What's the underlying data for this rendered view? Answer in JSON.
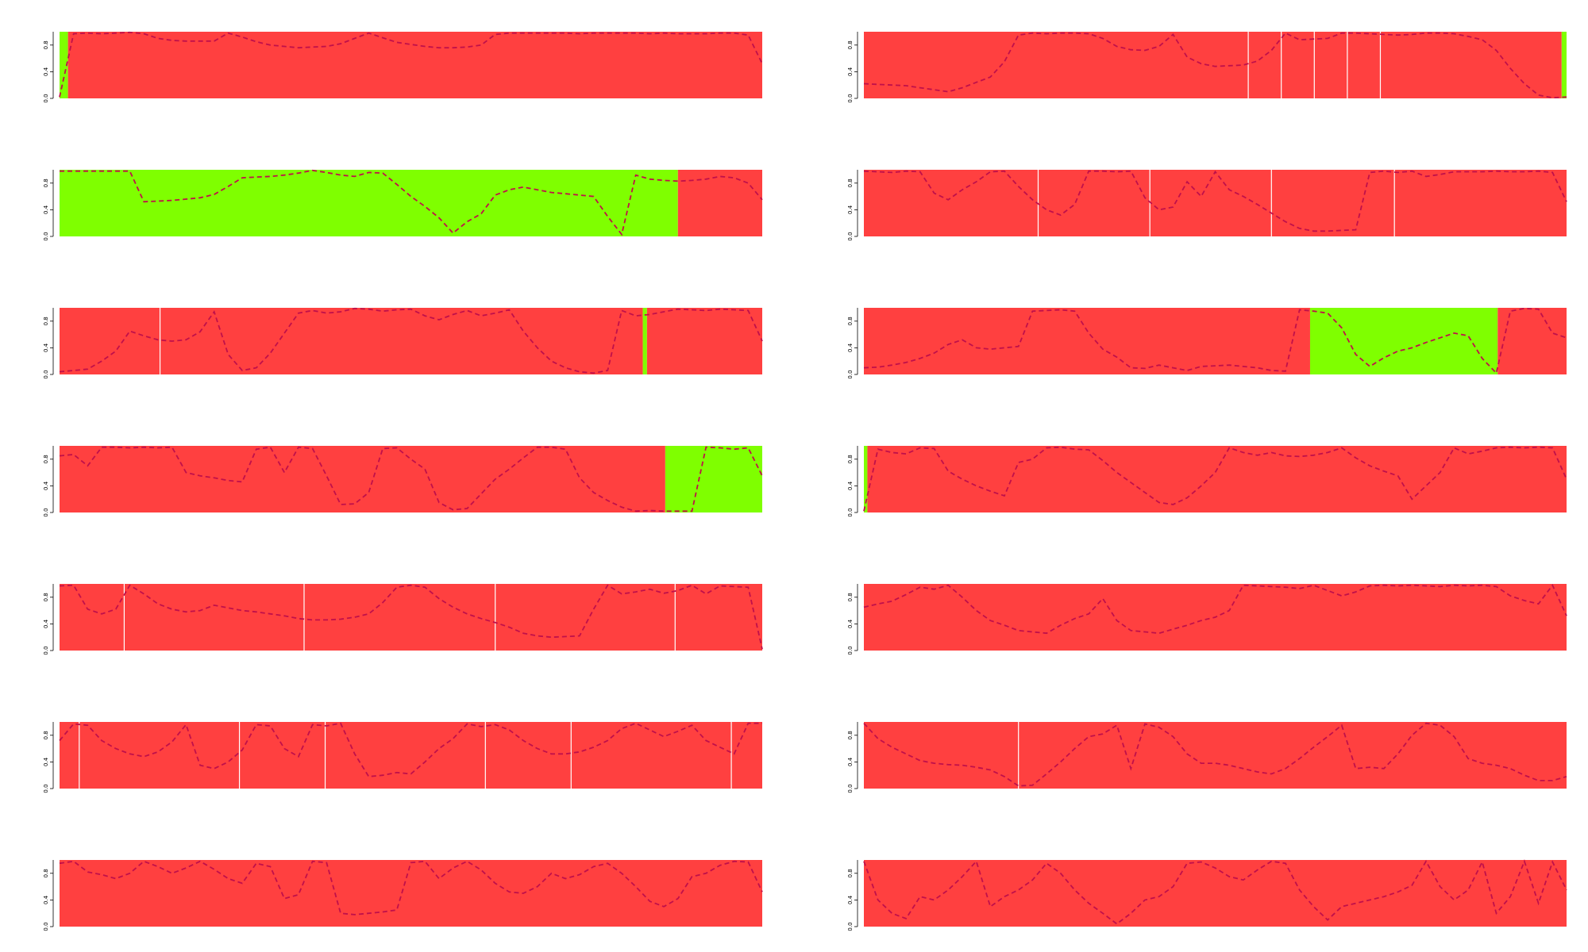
{
  "colors": {
    "state_a": "#ff4040",
    "state_b": "#7fff00",
    "boundary": "#ffffff",
    "probability_line": "#c0104a",
    "axis": "#000000"
  },
  "chart_data": [
    {
      "type": "area",
      "ylim": [
        0,
        1
      ],
      "yticks": [
        "0.0",
        "0.4",
        "0.8"
      ],
      "segments": [
        [
          0,
          0.012,
          "b"
        ],
        [
          0.012,
          1,
          "a"
        ]
      ],
      "boundaries": [],
      "y": [
        0.02,
        0.97,
        0.98,
        0.97,
        0.98,
        0.99,
        0.97,
        0.9,
        0.87,
        0.86,
        0.86,
        0.86,
        0.98,
        0.92,
        0.85,
        0.8,
        0.78,
        0.76,
        0.77,
        0.78,
        0.82,
        0.9,
        0.98,
        0.91,
        0.84,
        0.81,
        0.78,
        0.76,
        0.76,
        0.77,
        0.8,
        0.96,
        0.98,
        0.98,
        0.98,
        0.98,
        0.98,
        0.97,
        0.98,
        0.98,
        0.98,
        0.98,
        0.97,
        0.98,
        0.97,
        0.97,
        0.97,
        0.98,
        0.98,
        0.95,
        0.52
      ]
    },
    {
      "type": "area",
      "ylim": [
        0,
        1
      ],
      "yticks": [
        "0.0",
        "0.4",
        "0.8"
      ],
      "segments": [
        [
          0,
          0.993,
          "a"
        ],
        [
          0.993,
          1,
          "b"
        ]
      ],
      "boundaries": [
        0.547,
        0.594,
        0.641,
        0.688,
        0.735
      ],
      "y": [
        0.22,
        0.21,
        0.2,
        0.19,
        0.16,
        0.13,
        0.1,
        0.16,
        0.24,
        0.32,
        0.55,
        0.95,
        0.98,
        0.97,
        0.98,
        0.98,
        0.97,
        0.9,
        0.78,
        0.73,
        0.72,
        0.78,
        0.96,
        0.62,
        0.52,
        0.48,
        0.49,
        0.5,
        0.56,
        0.72,
        0.98,
        0.88,
        0.89,
        0.9,
        0.98,
        0.98,
        0.97,
        0.96,
        0.95,
        0.96,
        0.98,
        0.98,
        0.97,
        0.93,
        0.88,
        0.72,
        0.45,
        0.22,
        0.05,
        0.01,
        0.02
      ]
    },
    {
      "type": "area",
      "ylim": [
        0,
        1
      ],
      "yticks": [
        "0.0",
        "0.4",
        "0.8"
      ],
      "segments": [
        [
          0,
          0.88,
          "b"
        ],
        [
          0.88,
          1,
          "a"
        ]
      ],
      "boundaries": [],
      "y": [
        0.98,
        0.98,
        0.98,
        0.98,
        0.98,
        0.98,
        0.52,
        0.53,
        0.54,
        0.56,
        0.58,
        0.63,
        0.75,
        0.88,
        0.89,
        0.9,
        0.92,
        0.95,
        0.99,
        0.96,
        0.92,
        0.9,
        0.96,
        0.95,
        0.78,
        0.6,
        0.45,
        0.28,
        0.05,
        0.22,
        0.34,
        0.62,
        0.7,
        0.74,
        0.7,
        0.66,
        0.64,
        0.62,
        0.6,
        0.3,
        0.03,
        0.92,
        0.86,
        0.84,
        0.83,
        0.84,
        0.86,
        0.9,
        0.88,
        0.8,
        0.55
      ]
    },
    {
      "type": "area",
      "ylim": [
        0,
        1
      ],
      "yticks": [
        "0.0",
        "0.4",
        "0.8"
      ],
      "segments": [
        [
          0,
          0.248,
          "a"
        ],
        [
          0.248,
          0.407,
          "a"
        ],
        [
          0.407,
          0.58,
          "a"
        ],
        [
          0.58,
          0.755,
          "a"
        ],
        [
          0.755,
          1,
          "a"
        ]
      ],
      "boundaries": [
        0.248,
        0.407,
        0.58,
        0.755
      ],
      "y": [
        0.98,
        0.97,
        0.96,
        0.98,
        0.97,
        0.65,
        0.55,
        0.7,
        0.82,
        0.97,
        0.98,
        0.75,
        0.55,
        0.4,
        0.32,
        0.48,
        0.98,
        0.98,
        0.97,
        0.98,
        0.58,
        0.4,
        0.44,
        0.82,
        0.6,
        0.97,
        0.7,
        0.6,
        0.48,
        0.35,
        0.22,
        0.12,
        0.08,
        0.08,
        0.09,
        0.1,
        0.96,
        0.98,
        0.96,
        0.98,
        0.9,
        0.93,
        0.97,
        0.97,
        0.97,
        0.98,
        0.97,
        0.97,
        0.98,
        0.96,
        0.52
      ]
    },
    {
      "type": "area",
      "ylim": [
        0,
        1
      ],
      "yticks": [
        "0.0",
        "0.4",
        "0.8"
      ],
      "segments": [
        [
          0,
          0.83,
          "a"
        ],
        [
          0.83,
          0.836,
          "b"
        ],
        [
          0.836,
          1,
          "a"
        ]
      ],
      "boundaries": [
        0.143
      ],
      "y": [
        0.04,
        0.06,
        0.08,
        0.2,
        0.35,
        0.65,
        0.58,
        0.52,
        0.5,
        0.52,
        0.64,
        0.94,
        0.3,
        0.06,
        0.1,
        0.32,
        0.62,
        0.92,
        0.96,
        0.92,
        0.94,
        0.99,
        0.98,
        0.95,
        0.97,
        0.98,
        0.88,
        0.82,
        0.9,
        0.96,
        0.88,
        0.92,
        0.97,
        0.65,
        0.4,
        0.2,
        0.1,
        0.04,
        0.02,
        0.06,
        0.96,
        0.88,
        0.9,
        0.94,
        0.98,
        0.97,
        0.96,
        0.98,
        0.97,
        0.96,
        0.5
      ]
    },
    {
      "type": "area",
      "ylim": [
        0,
        1
      ],
      "yticks": [
        "0.0",
        "0.4",
        "0.8"
      ],
      "segments": [
        [
          0,
          0.635,
          "a"
        ],
        [
          0.635,
          0.902,
          "b"
        ],
        [
          0.902,
          1,
          "a"
        ]
      ],
      "boundaries": [],
      "y": [
        0.1,
        0.11,
        0.14,
        0.18,
        0.24,
        0.32,
        0.45,
        0.52,
        0.4,
        0.38,
        0.4,
        0.42,
        0.95,
        0.96,
        0.97,
        0.95,
        0.62,
        0.38,
        0.26,
        0.1,
        0.09,
        0.14,
        0.1,
        0.06,
        0.12,
        0.13,
        0.14,
        0.12,
        0.1,
        0.06,
        0.05,
        0.97,
        0.95,
        0.92,
        0.7,
        0.3,
        0.12,
        0.25,
        0.35,
        0.4,
        0.48,
        0.55,
        0.62,
        0.58,
        0.24,
        0.02,
        0.95,
        0.99,
        0.98,
        0.62,
        0.55
      ]
    },
    {
      "type": "area",
      "ylim": [
        0,
        1
      ],
      "yticks": [
        "0.0",
        "0.4",
        "0.8"
      ],
      "segments": [
        [
          0,
          0.862,
          "a"
        ],
        [
          0.862,
          1,
          "b"
        ]
      ],
      "boundaries": [],
      "y": [
        0.85,
        0.87,
        0.7,
        0.98,
        0.98,
        0.97,
        0.98,
        0.97,
        0.98,
        0.6,
        0.55,
        0.52,
        0.48,
        0.46,
        0.95,
        0.98,
        0.6,
        0.98,
        0.96,
        0.55,
        0.12,
        0.13,
        0.3,
        0.96,
        0.97,
        0.8,
        0.65,
        0.15,
        0.04,
        0.06,
        0.28,
        0.5,
        0.65,
        0.82,
        0.98,
        0.98,
        0.95,
        0.52,
        0.3,
        0.18,
        0.08,
        0.02,
        0.03,
        0.02,
        0.02,
        0.02,
        0.98,
        0.97,
        0.95,
        0.97,
        0.55
      ]
    },
    {
      "type": "area",
      "ylim": [
        0,
        1
      ],
      "yticks": [
        "0.0",
        "0.4",
        "0.8"
      ],
      "segments": [
        [
          0,
          0.005,
          "b"
        ],
        [
          0.005,
          1,
          "a"
        ]
      ],
      "boundaries": [],
      "y": [
        0.02,
        0.95,
        0.9,
        0.88,
        0.97,
        0.96,
        0.62,
        0.5,
        0.4,
        0.32,
        0.25,
        0.75,
        0.8,
        0.97,
        0.98,
        0.95,
        0.94,
        0.78,
        0.6,
        0.45,
        0.3,
        0.15,
        0.12,
        0.22,
        0.4,
        0.6,
        0.97,
        0.9,
        0.86,
        0.9,
        0.85,
        0.84,
        0.86,
        0.9,
        0.97,
        0.82,
        0.7,
        0.62,
        0.55,
        0.2,
        0.4,
        0.6,
        0.97,
        0.88,
        0.92,
        0.97,
        0.98,
        0.97,
        0.98,
        0.97,
        0.5
      ]
    },
    {
      "type": "area",
      "ylim": [
        0,
        1
      ],
      "yticks": [
        "0.0",
        "0.4",
        "0.8"
      ],
      "segments": [
        [
          0,
          1,
          "a"
        ]
      ],
      "boundaries": [
        0.092,
        0.348,
        0.62,
        0.876
      ],
      "y": [
        0.97,
        0.98,
        0.62,
        0.55,
        0.62,
        0.98,
        0.85,
        0.7,
        0.62,
        0.58,
        0.6,
        0.68,
        0.64,
        0.6,
        0.58,
        0.55,
        0.52,
        0.48,
        0.46,
        0.46,
        0.47,
        0.5,
        0.55,
        0.72,
        0.95,
        0.98,
        0.95,
        0.78,
        0.65,
        0.55,
        0.48,
        0.42,
        0.35,
        0.26,
        0.22,
        0.2,
        0.21,
        0.22,
        0.62,
        0.98,
        0.85,
        0.88,
        0.92,
        0.86,
        0.9,
        0.98,
        0.85,
        0.97,
        0.96,
        0.95,
        0.02
      ]
    },
    {
      "type": "area",
      "ylim": [
        0,
        1
      ],
      "yticks": [
        "0.0",
        "0.4",
        "0.8"
      ],
      "segments": [
        [
          0,
          1,
          "a"
        ]
      ],
      "boundaries": [],
      "y": [
        0.65,
        0.7,
        0.74,
        0.84,
        0.95,
        0.92,
        0.98,
        0.8,
        0.6,
        0.45,
        0.38,
        0.3,
        0.28,
        0.26,
        0.38,
        0.48,
        0.55,
        0.78,
        0.45,
        0.3,
        0.28,
        0.26,
        0.32,
        0.38,
        0.45,
        0.5,
        0.6,
        0.98,
        0.97,
        0.96,
        0.95,
        0.93,
        0.98,
        0.9,
        0.82,
        0.88,
        0.97,
        0.98,
        0.97,
        0.98,
        0.97,
        0.96,
        0.98,
        0.97,
        0.98,
        0.96,
        0.82,
        0.75,
        0.7,
        0.98,
        0.52
      ]
    },
    {
      "type": "area",
      "ylim": [
        0,
        1
      ],
      "yticks": [
        "0.0",
        "0.4",
        "0.8"
      ],
      "segments": [
        [
          0,
          1,
          "a"
        ]
      ],
      "boundaries": [
        0.028,
        0.256,
        0.378,
        0.606,
        0.728,
        0.956
      ],
      "y": [
        0.72,
        0.97,
        0.95,
        0.72,
        0.6,
        0.52,
        0.48,
        0.55,
        0.7,
        0.96,
        0.35,
        0.3,
        0.4,
        0.58,
        0.96,
        0.94,
        0.6,
        0.48,
        0.96,
        0.94,
        0.98,
        0.52,
        0.18,
        0.2,
        0.24,
        0.22,
        0.4,
        0.6,
        0.75,
        0.97,
        0.93,
        0.96,
        0.88,
        0.72,
        0.6,
        0.52,
        0.52,
        0.55,
        0.62,
        0.72,
        0.9,
        0.98,
        0.88,
        0.78,
        0.86,
        0.95,
        0.72,
        0.62,
        0.52,
        0.98,
        0.98
      ]
    },
    {
      "type": "area",
      "ylim": [
        0,
        1
      ],
      "yticks": [
        "0.0",
        "0.4",
        "0.8"
      ],
      "segments": [
        [
          0,
          1,
          "a"
        ]
      ],
      "boundaries": [
        0.22
      ],
      "y": [
        0.98,
        0.75,
        0.62,
        0.52,
        0.42,
        0.38,
        0.36,
        0.35,
        0.32,
        0.28,
        0.18,
        0.04,
        0.05,
        0.22,
        0.4,
        0.6,
        0.78,
        0.82,
        0.95,
        0.3,
        0.97,
        0.92,
        0.78,
        0.52,
        0.38,
        0.38,
        0.35,
        0.3,
        0.25,
        0.22,
        0.3,
        0.45,
        0.62,
        0.78,
        0.95,
        0.3,
        0.32,
        0.3,
        0.52,
        0.8,
        0.98,
        0.95,
        0.78,
        0.45,
        0.38,
        0.35,
        0.3,
        0.2,
        0.12,
        0.12,
        0.18
      ]
    },
    {
      "type": "area",
      "ylim": [
        0,
        1
      ],
      "yticks": [
        "0.0",
        "0.4",
        "0.8"
      ],
      "segments": [
        [
          0,
          1,
          "a"
        ]
      ],
      "boundaries": [],
      "y": [
        0.95,
        0.98,
        0.82,
        0.78,
        0.72,
        0.8,
        0.98,
        0.9,
        0.8,
        0.88,
        0.98,
        0.86,
        0.72,
        0.65,
        0.95,
        0.9,
        0.42,
        0.48,
        0.98,
        0.96,
        0.2,
        0.18,
        0.2,
        0.22,
        0.25,
        0.96,
        0.98,
        0.72,
        0.88,
        0.98,
        0.85,
        0.65,
        0.52,
        0.5,
        0.6,
        0.8,
        0.72,
        0.78,
        0.9,
        0.95,
        0.8,
        0.6,
        0.38,
        0.3,
        0.42,
        0.75,
        0.8,
        0.92,
        0.98,
        0.97,
        0.52
      ]
    },
    {
      "type": "area",
      "ylim": [
        0,
        1
      ],
      "yticks": [
        "0.0",
        "0.4",
        "0.8"
      ],
      "segments": [
        [
          0,
          1,
          "a"
        ]
      ],
      "boundaries": [],
      "y": [
        0.98,
        0.4,
        0.2,
        0.12,
        0.45,
        0.4,
        0.55,
        0.75,
        0.98,
        0.3,
        0.45,
        0.55,
        0.7,
        0.95,
        0.8,
        0.55,
        0.35,
        0.2,
        0.04,
        0.2,
        0.4,
        0.45,
        0.6,
        0.95,
        0.97,
        0.88,
        0.75,
        0.7,
        0.85,
        0.98,
        0.95,
        0.55,
        0.3,
        0.1,
        0.3,
        0.35,
        0.4,
        0.45,
        0.52,
        0.62,
        0.98,
        0.6,
        0.4,
        0.55,
        0.97,
        0.2,
        0.45,
        0.98,
        0.35,
        0.97,
        0.55
      ]
    }
  ]
}
